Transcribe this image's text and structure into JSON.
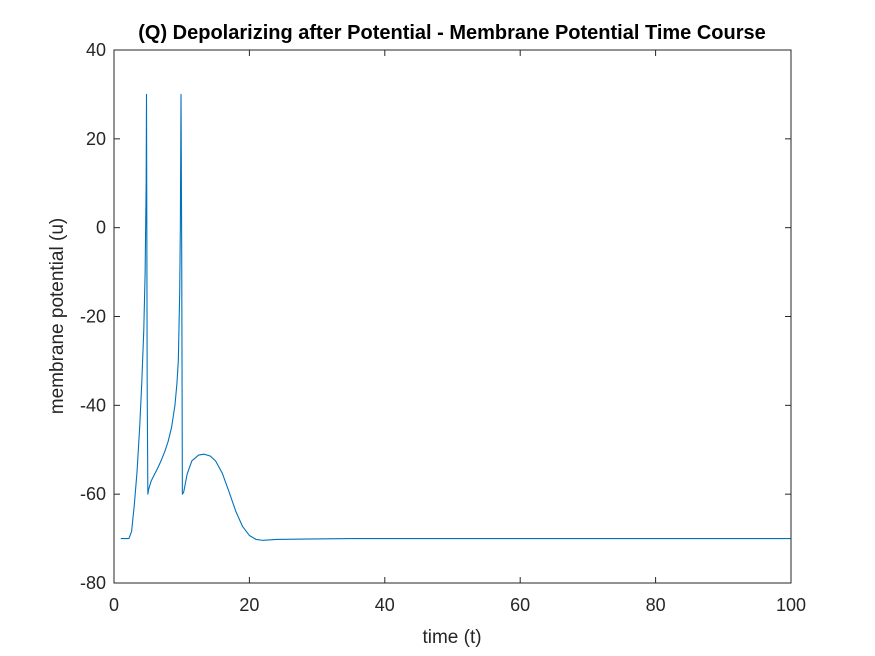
{
  "chart_data": {
    "type": "line",
    "title": "(Q) Depolarizing after Potential - Membrane Potential Time Course",
    "xlabel": "time (t)",
    "ylabel": "membrane potential (u)",
    "xlim": [
      0,
      100
    ],
    "ylim": [
      -80,
      40
    ],
    "xticks": [
      0,
      20,
      40,
      60,
      80,
      100
    ],
    "yticks": [
      -80,
      -60,
      -40,
      -20,
      0,
      20,
      40
    ],
    "xtick_labels": [
      "0",
      "20",
      "40",
      "60",
      "80",
      "100"
    ],
    "ytick_labels": [
      "-80",
      "-60",
      "-40",
      "-20",
      "0",
      "20",
      "40"
    ],
    "grid": false,
    "box": true,
    "line_color": "#0072BD",
    "series": [
      {
        "x": [
          1,
          2.2,
          2.6,
          3.0,
          3.4,
          3.8,
          4.1,
          4.4,
          4.6,
          4.75,
          4.8,
          4.85,
          4.9,
          5.0,
          5.1,
          5.5,
          6.0,
          6.5,
          7.0,
          7.5,
          8.0,
          8.5,
          9.0,
          9.3,
          9.5,
          9.7,
          9.8,
          9.9,
          10.0,
          10.1,
          10.3,
          10.8,
          11.5,
          12.5,
          13.3,
          14.2,
          15.0,
          16.0,
          17.0,
          18.0,
          19.0,
          20.0,
          21.0,
          22.0,
          24.0,
          28.0,
          35.0,
          50.0,
          70.0,
          100.0
        ],
        "y": [
          -70,
          -70,
          -68.4,
          -62.4,
          -55,
          -44.7,
          -35,
          -23,
          -10,
          10,
          30,
          0,
          -35,
          -60,
          -59,
          -57,
          -55.5,
          -54,
          -52.3,
          -50.4,
          -48.1,
          -45,
          -40,
          -35,
          -30,
          -15,
          0,
          30,
          -5,
          -60,
          -59.5,
          -55.5,
          -52.5,
          -51.2,
          -51,
          -51.4,
          -52.5,
          -55.3,
          -59.5,
          -63.9,
          -67.3,
          -69.3,
          -70.2,
          -70.4,
          -70.2,
          -70.1,
          -70,
          -70,
          -70,
          -70
        ]
      }
    ]
  }
}
